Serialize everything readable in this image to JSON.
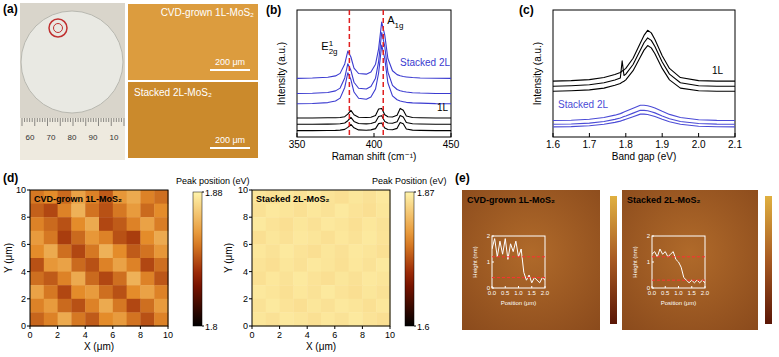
{
  "panel_a": {
    "label": "(a)",
    "ruler_labels": [
      "60",
      "70",
      "80",
      "90",
      "10"
    ],
    "images": [
      {
        "title": "CVD-grown 1L-MoS₂",
        "scale_bar": "200 μm"
      },
      {
        "title": "Stacked 2L-MoS₂",
        "scale_bar": "200 μm"
      }
    ]
  },
  "chart_data": [
    {
      "panel_label": "(b)",
      "type": "line",
      "x_label": "Raman shift (cm⁻¹)",
      "y_label": "Intensity (a.u.)",
      "x": [
        350,
        360,
        370,
        375,
        378,
        381,
        383,
        385,
        387,
        390,
        395,
        398,
        401,
        403,
        405,
        407,
        409,
        412,
        415,
        417,
        419,
        421,
        425,
        430,
        440,
        450
      ],
      "xlim": [
        350,
        450
      ],
      "xticks": [
        350,
        400,
        450
      ],
      "ylim": [
        0,
        10
      ],
      "tick_labels": "x",
      "vlines": [
        384,
        406
      ],
      "vline_labels": [
        {
          "text": "E",
          "sup": "1",
          "sub": "2g"
        },
        {
          "text": "A",
          "sub": "1g"
        }
      ],
      "annotations": [
        {
          "text": "Stacked 2L",
          "color": "#3a3ad0"
        },
        {
          "text": "1L",
          "color": "#000000"
        }
      ],
      "series": [
        {
          "color": "#3a3ad0",
          "values": [
            4.62,
            4.64,
            4.7,
            4.81,
            5.01,
            5.75,
            6.77,
            6.3,
            5.43,
            5.0,
            4.95,
            5.12,
            5.73,
            6.94,
            9.05,
            8.02,
            6.18,
            5.22,
            4.91,
            4.82,
            4.76,
            4.73,
            4.68,
            4.65,
            4.63,
            4.62
          ]
        },
        {
          "color": "#3a3ad0",
          "values": [
            3.43,
            3.44,
            3.5,
            3.63,
            3.85,
            4.65,
            5.77,
            5.25,
            4.31,
            3.84,
            3.78,
            3.97,
            4.63,
            5.94,
            8.23,
            7.13,
            5.12,
            4.07,
            3.74,
            3.64,
            3.58,
            3.54,
            3.49,
            3.46,
            3.43,
            3.42
          ]
        },
        {
          "color": "#3a3ad0",
          "values": [
            2.62,
            2.64,
            2.71,
            2.83,
            3.06,
            3.9,
            5.06,
            4.52,
            3.54,
            3.05,
            2.97,
            3.15,
            3.78,
            5.04,
            7.24,
            6.18,
            4.27,
            3.24,
            2.93,
            2.83,
            2.78,
            2.73,
            2.69,
            2.67,
            2.63,
            2.62
          ]
        },
        {
          "color": "#000000",
          "values": [
            1.5,
            1.5,
            1.51,
            1.52,
            1.54,
            1.6,
            1.8,
            2.1,
            1.75,
            1.56,
            1.53,
            1.56,
            1.7,
            2.2,
            2.25,
            1.75,
            1.6,
            1.58,
            1.72,
            2.25,
            2.1,
            1.65,
            1.54,
            1.52,
            1.5,
            1.5
          ]
        },
        {
          "color": "#000000",
          "values": [
            1.0,
            1.0,
            1.01,
            1.02,
            1.04,
            1.1,
            1.28,
            1.55,
            1.23,
            1.06,
            1.03,
            1.06,
            1.18,
            1.62,
            1.68,
            1.22,
            1.1,
            1.08,
            1.2,
            1.7,
            1.58,
            1.14,
            1.04,
            1.02,
            1.0,
            1.0
          ]
        },
        {
          "color": "#000000",
          "values": [
            0.5,
            0.5,
            0.51,
            0.52,
            0.54,
            0.6,
            0.76,
            1.0,
            0.72,
            0.56,
            0.53,
            0.56,
            0.66,
            1.05,
            1.1,
            0.7,
            0.59,
            0.57,
            0.68,
            1.15,
            1.05,
            0.63,
            0.54,
            0.52,
            0.5,
            0.5
          ]
        }
      ]
    },
    {
      "panel_label": "(c)",
      "type": "line",
      "x_label": "Band gap (eV)",
      "y_label": "Intensity (a.u.)",
      "x": [
        1.6,
        1.65,
        1.7,
        1.74,
        1.77,
        1.785,
        1.79,
        1.795,
        1.8,
        1.82,
        1.84,
        1.85,
        1.86,
        1.87,
        1.88,
        1.9,
        1.92,
        1.95,
        2.0,
        2.05,
        2.1
      ],
      "xlim": [
        1.6,
        2.1
      ],
      "xticks": [
        1.6,
        1.7,
        1.8,
        1.9,
        {
          "value": 2,
          "label": "2.0"
        },
        2.1
      ],
      "ylim": [
        0,
        10
      ],
      "tick_labels": "x",
      "annotations": [
        {
          "text": "Stacked 2L",
          "color": "#4b4bd6"
        },
        {
          "text": "1L",
          "color": "#000000"
        }
      ],
      "series": [
        {
          "color": "#000000",
          "values": [
            4.4,
            4.44,
            4.52,
            4.68,
            4.92,
            5.08,
            5.2,
            5.28,
            5.4,
            6.2,
            7.4,
            8.0,
            8.4,
            8.2,
            7.68,
            6.4,
            5.4,
            4.68,
            4.44,
            4.4,
            4.4
          ]
        },
        {
          "color": "#000000",
          "values": [
            4.0,
            4.04,
            4.11,
            4.27,
            4.49,
            4.65,
            6.0,
            4.84,
            4.95,
            5.71,
            6.85,
            7.42,
            7.8,
            7.61,
            7.12,
            5.9,
            4.95,
            4.27,
            4.04,
            4.0,
            4.0
          ]
        },
        {
          "color": "#000000",
          "values": [
            3.6,
            3.64,
            3.71,
            3.85,
            4.07,
            4.21,
            4.32,
            4.39,
            4.5,
            5.22,
            6.3,
            6.84,
            7.2,
            7.02,
            6.55,
            5.4,
            4.5,
            3.85,
            3.64,
            3.6,
            3.6
          ]
        },
        {
          "color": "#4b4bd6",
          "values": [
            1.3,
            1.32,
            1.4,
            1.54,
            1.72,
            1.84,
            1.9,
            1.96,
            2.02,
            2.26,
            2.5,
            2.5,
            2.46,
            2.38,
            2.28,
            2.02,
            1.78,
            1.54,
            1.36,
            1.31,
            1.3
          ]
        },
        {
          "color": "#4b4bd6",
          "values": [
            1.0,
            1.02,
            1.09,
            1.22,
            1.39,
            1.5,
            1.55,
            1.61,
            1.66,
            1.88,
            2.1,
            2.1,
            2.07,
            1.99,
            1.9,
            1.66,
            1.44,
            1.22,
            1.06,
            1.01,
            1.0
          ]
        },
        {
          "color": "#4b4bd6",
          "values": [
            0.8,
            0.82,
            0.88,
            1.0,
            1.15,
            1.25,
            1.3,
            1.35,
            1.4,
            1.6,
            1.8,
            1.8,
            1.77,
            1.7,
            1.62,
            1.4,
            1.2,
            1.0,
            0.85,
            0.81,
            0.8
          ]
        }
      ]
    },
    {
      "panel_label": "(d)",
      "type": "heatmap",
      "title": "CVD-grown 1L-MoS₂",
      "x_label": "X (μm)",
      "y_label": "Y (μm)",
      "xlim": [
        0,
        10
      ],
      "ylim": [
        0,
        10
      ],
      "xticks": [
        0,
        2,
        4,
        6,
        8,
        10
      ],
      "yticks": [
        0,
        2,
        4,
        6,
        8,
        10
      ],
      "cells": [
        [
          1.848,
          1.852,
          1.845,
          1.858,
          1.85,
          1.842,
          1.855,
          1.86,
          1.85,
          1.846
        ],
        [
          1.843,
          1.838,
          1.85,
          1.862,
          1.847,
          1.84,
          1.848,
          1.856,
          1.845,
          1.852
        ],
        [
          1.85,
          1.845,
          1.84,
          1.852,
          1.86,
          1.838,
          1.842,
          1.85,
          1.858,
          1.849
        ],
        [
          1.856,
          1.848,
          1.836,
          1.845,
          1.855,
          1.85,
          1.84,
          1.836,
          1.852,
          1.86
        ],
        [
          1.852,
          1.86,
          1.846,
          1.838,
          1.848,
          1.862,
          1.852,
          1.842,
          1.847,
          1.855
        ],
        [
          1.84,
          1.855,
          1.858,
          1.845,
          1.84,
          1.85,
          1.858,
          1.85,
          1.838,
          1.846
        ],
        [
          1.846,
          1.842,
          1.85,
          1.86,
          1.845,
          1.838,
          1.846,
          1.862,
          1.85,
          1.841
        ],
        [
          1.858,
          1.848,
          1.838,
          1.852,
          1.856,
          1.846,
          1.84,
          1.852,
          1.858,
          1.85
        ],
        [
          1.85,
          1.856,
          1.845,
          1.84,
          1.85,
          1.86,
          1.848,
          1.838,
          1.846,
          1.856
        ],
        [
          1.844,
          1.85,
          1.86,
          1.848,
          1.842,
          1.852,
          1.856,
          1.847,
          1.84,
          1.85
        ]
      ],
      "colorbar": {
        "title": "Peak position (eV)",
        "range": [
          1.8,
          1.88
        ],
        "ticks": [
          1.8,
          1.88
        ]
      }
    },
    {
      "type": "heatmap",
      "title": "Stacked 2L-MoS₂",
      "x_label": "X (μm)",
      "y_label": "Y (μm)",
      "xlim": [
        0,
        10
      ],
      "ylim": [
        0,
        10
      ],
      "xticks": [
        0,
        2,
        4,
        6,
        8,
        10
      ],
      "yticks": [
        0,
        2,
        4,
        6,
        8,
        10
      ],
      "cells": [
        [
          1.856,
          1.852,
          1.858,
          1.854,
          1.86,
          1.855,
          1.851,
          1.857,
          1.853,
          1.859
        ],
        [
          1.853,
          1.859,
          1.856,
          1.852,
          1.858,
          1.854,
          1.86,
          1.855,
          1.851,
          1.857
        ],
        [
          1.86,
          1.855,
          1.851,
          1.857,
          1.853,
          1.859,
          1.856,
          1.852,
          1.858,
          1.854
        ],
        [
          1.851,
          1.857,
          1.853,
          1.859,
          1.856,
          1.852,
          1.858,
          1.854,
          1.86,
          1.855
        ],
        [
          1.858,
          1.854,
          1.86,
          1.855,
          1.851,
          1.857,
          1.853,
          1.859,
          1.856,
          1.852
        ],
        [
          1.855,
          1.851,
          1.857,
          1.853,
          1.859,
          1.856,
          1.852,
          1.858,
          1.854,
          1.86
        ],
        [
          1.852,
          1.858,
          1.854,
          1.86,
          1.855,
          1.851,
          1.857,
          1.853,
          1.859,
          1.856
        ],
        [
          1.859,
          1.856,
          1.852,
          1.858,
          1.854,
          1.86,
          1.855,
          1.851,
          1.857,
          1.853
        ],
        [
          1.854,
          1.86,
          1.855,
          1.851,
          1.857,
          1.853,
          1.859,
          1.856,
          1.852,
          1.858
        ],
        [
          1.857,
          1.853,
          1.859,
          1.856,
          1.852,
          1.858,
          1.854,
          1.86,
          1.855,
          1.851
        ]
      ],
      "colorbar": {
        "title": "Peak Position (eV)",
        "range": [
          1.6,
          1.87
        ],
        "ticks": [
          1.6,
          1.87
        ]
      }
    },
    {
      "panel_label": "(e)",
      "type": "line",
      "image_title": "CVD-grown 1L-MoS₂",
      "x_label": "Position (μm)",
      "y_label": "Height (nm)",
      "x": [
        0,
        0.1,
        0.2,
        0.3,
        0.4,
        0.5,
        0.6,
        0.7,
        0.8,
        0.9,
        1.0,
        1.1,
        1.2,
        1.3,
        1.4,
        1.5,
        1.6,
        1.7,
        1.8,
        1.9,
        2.0
      ],
      "xlim": [
        0,
        2
      ],
      "xticks": [
        {
          "value": 0,
          "label": "0.0"
        },
        0.5,
        {
          "value": 1,
          "label": "1.0"
        },
        1.5,
        {
          "value": 2,
          "label": "2.0"
        }
      ],
      "ylim": [
        0,
        2
      ],
      "yticks": [
        0,
        1,
        2
      ],
      "hlines": [
        1.2,
        0.4
      ],
      "series": [
        {
          "color": "#ffffff",
          "values": [
            1.5,
            1.9,
            1.2,
            1.8,
            1.3,
            1.9,
            1.1,
            1.7,
            1.4,
            1.8,
            1.2,
            1.5,
            0.6,
            0.3,
            0.5,
            0.2,
            0.4,
            0.3,
            0.2,
            0.4,
            0.3
          ]
        }
      ]
    },
    {
      "type": "line",
      "image_title": "Stacked 2L-MoS₂",
      "x_label": "Position (μm)",
      "y_label": "Height (nm)",
      "x": [
        0,
        0.1,
        0.2,
        0.3,
        0.4,
        0.5,
        0.6,
        0.7,
        0.8,
        0.9,
        1.0,
        1.1,
        1.2,
        1.3,
        1.4,
        1.5,
        1.6,
        1.7,
        1.8,
        1.9,
        2.0
      ],
      "xlim": [
        0,
        2
      ],
      "xticks": [
        {
          "value": 0,
          "label": "0.0"
        },
        0.5,
        {
          "value": 1,
          "label": "1.0"
        },
        1.5,
        {
          "value": 2,
          "label": "2.0"
        }
      ],
      "ylim": [
        0,
        2
      ],
      "yticks": [
        0,
        1,
        2
      ],
      "hlines": [
        1.2,
        0.3
      ],
      "series": [
        {
          "color": "#ffffff",
          "values": [
            1.3,
            1.4,
            1.2,
            1.5,
            1.3,
            1.4,
            1.2,
            1.3,
            1.4,
            1.1,
            1.0,
            0.8,
            0.4,
            0.3,
            0.2,
            0.3,
            0.2,
            0.3,
            0.2,
            0.3,
            0.2
          ]
        }
      ]
    }
  ]
}
